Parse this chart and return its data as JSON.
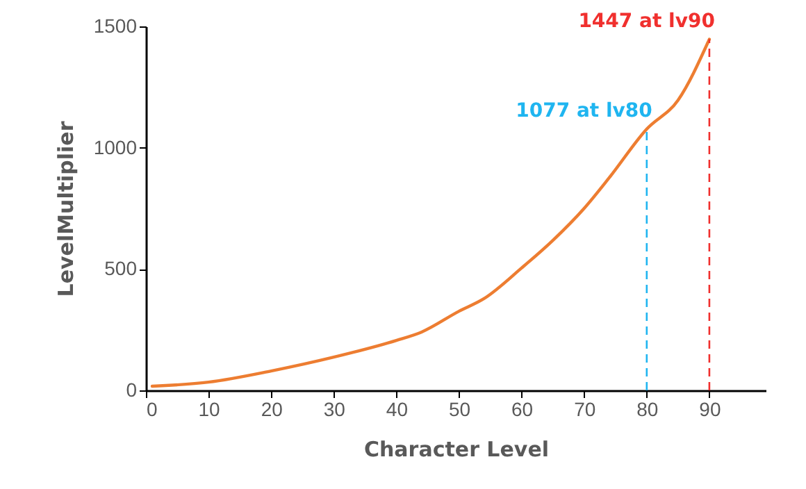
{
  "chart_data": {
    "type": "line",
    "xlabel": "Character Level",
    "ylabel": "LevelMultiplier",
    "x": [
      1,
      10,
      20,
      30,
      40,
      44,
      50,
      54,
      60,
      65,
      70,
      74,
      80,
      85,
      90
    ],
    "series": [
      {
        "color": "#ed7d31",
        "values": [
          17,
          34,
          80,
          137,
          206,
          240,
          326,
          378,
          504,
          618,
          750,
          876,
          1077,
          1196,
          1447
        ]
      }
    ],
    "xlim": [
      0,
      99
    ],
    "xticks": [
      0,
      10,
      20,
      30,
      40,
      50,
      60,
      70,
      80,
      90
    ],
    "ylim": [
      0,
      1500
    ],
    "yticks": [
      0,
      500,
      1000,
      1500
    ],
    "ref_lines": [
      {
        "axis": "x",
        "value": 80,
        "label": "1077 at lv80",
        "color": "#1fb5f0",
        "line_style": "dashed"
      },
      {
        "axis": "x",
        "value": 90,
        "label": "1447 at lv90",
        "color": "#f0302e",
        "line_style": "dashed"
      }
    ],
    "grid": false,
    "marker": "none",
    "line_style": "solid"
  }
}
